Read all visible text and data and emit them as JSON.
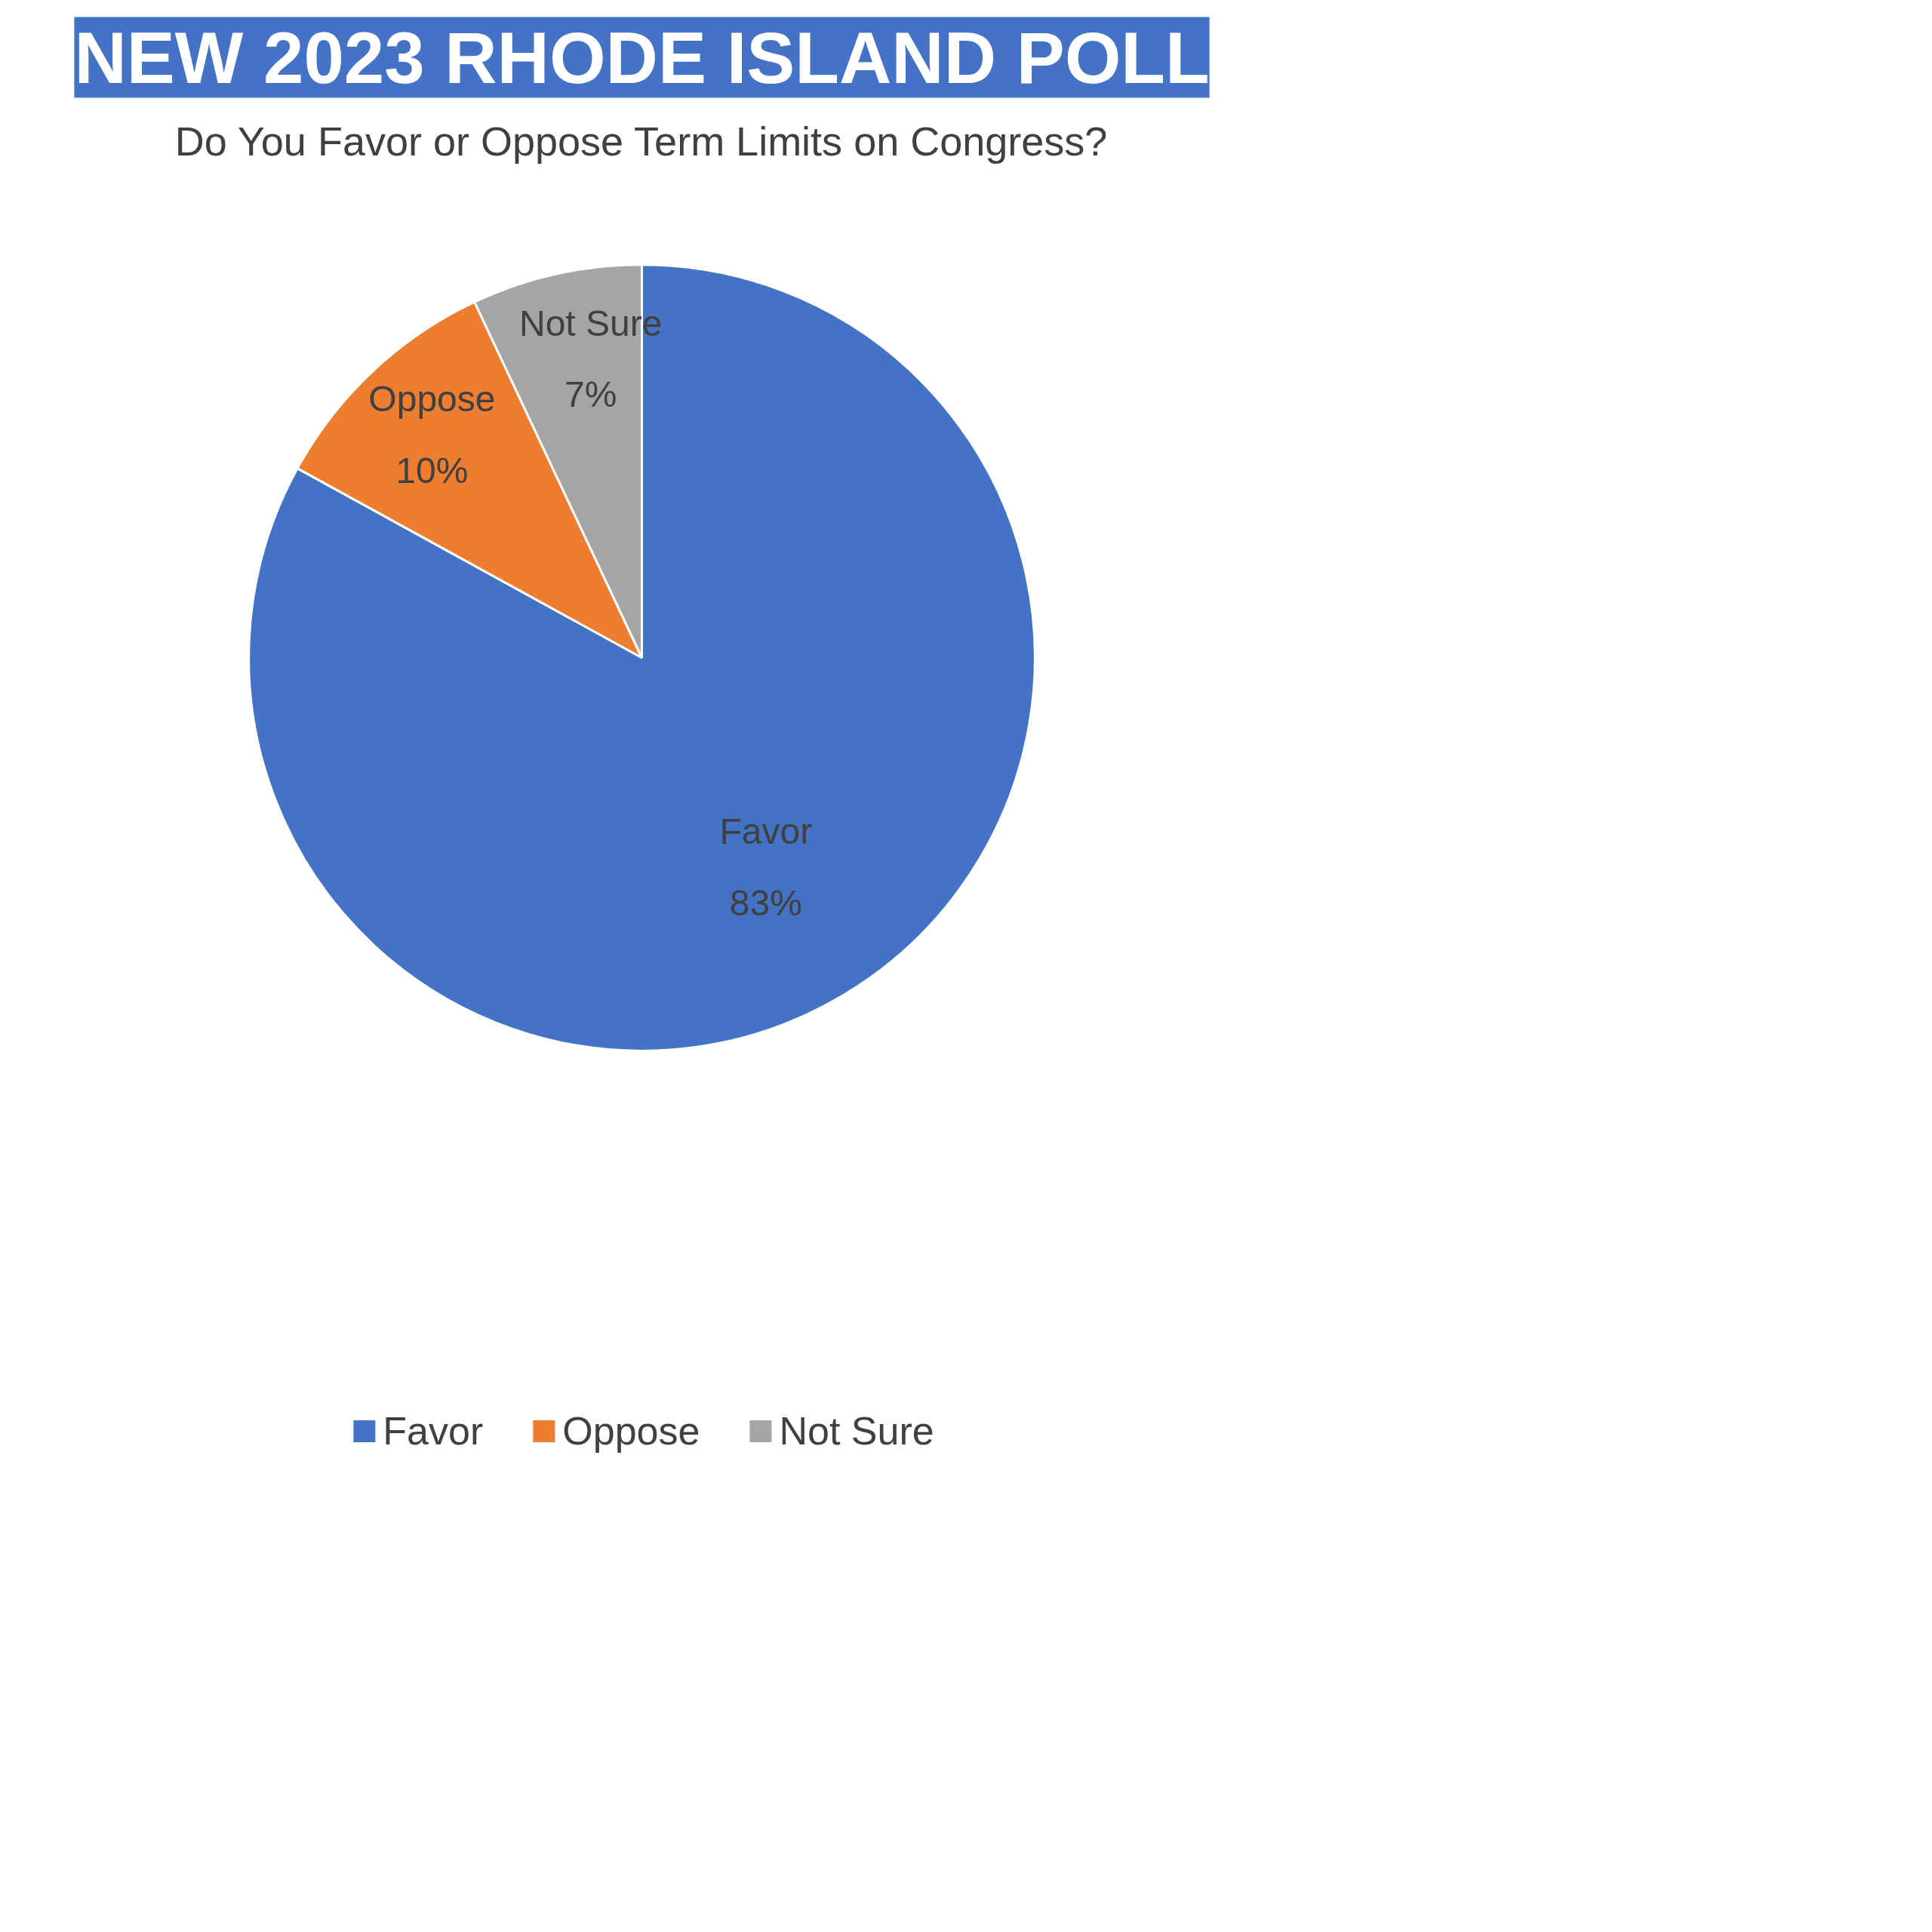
{
  "chart_data": {
    "type": "pie",
    "title": "NEW 2023 RHODE ISLAND POLL",
    "subtitle": "Do You Favor or Oppose Term Limits on Congress?",
    "categories": [
      "Favor",
      "Oppose",
      "Not Sure"
    ],
    "values": [
      83,
      10,
      7
    ],
    "colors": [
      "#4472c4",
      "#ed7d31",
      "#a5a5a5"
    ],
    "value_labels": [
      "83%",
      "10%",
      "7%"
    ],
    "legend": "bottom"
  }
}
